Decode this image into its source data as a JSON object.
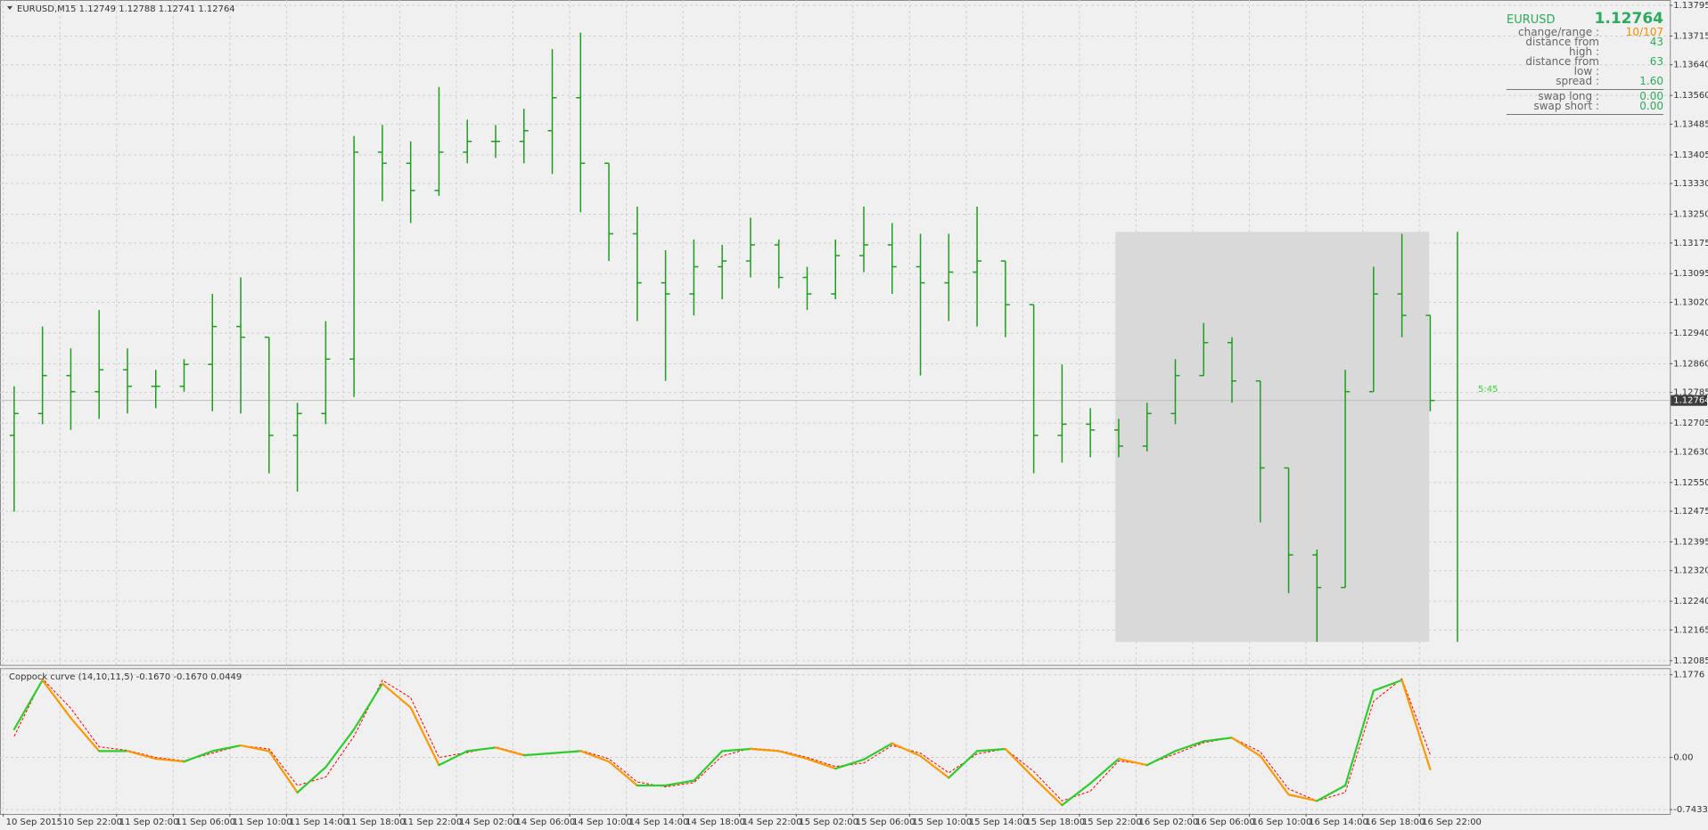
{
  "chart_data": [
    {
      "type": "ohlc",
      "title": "EURUSD,M15",
      "header_prices": [
        1.12749,
        1.12788,
        1.12741,
        1.12764
      ],
      "categories": [
        "10 Sep 2015",
        null,
        "10 Sep 22:00",
        null,
        "11 Sep 02:00",
        null,
        "11 Sep 06:00",
        null,
        "11 Sep 10:00",
        null,
        "11 Sep 14:00",
        null,
        "11 Sep 18:00",
        null,
        "11 Sep 22:00",
        null,
        "14 Sep 02:00",
        null,
        "14 Sep 06:00",
        null,
        "14 Sep 10:00",
        null,
        "14 Sep 14:00",
        null,
        "14 Sep 18:00",
        null,
        "14 Sep 22:00",
        null,
        "15 Sep 02:00",
        null,
        "15 Sep 06:00",
        null,
        "15 Sep 10:00",
        null,
        "15 Sep 14:00",
        null,
        "15 Sep 18:00",
        null,
        "15 Sep 22:00",
        null,
        "16 Sep 02:00",
        null,
        "16 Sep 06:00",
        null,
        "16 Sep 10:00",
        null,
        "16 Sep 14:00",
        null,
        "16 Sep 18:00",
        null,
        "16 Sep 22:00"
      ],
      "open": [
        1.12673,
        1.1273,
        1.12829,
        1.12787,
        1.12844,
        1.12801,
        1.12801,
        1.12858,
        1.12957,
        1.12929,
        1.12673,
        1.1273,
        1.12872,
        1.13412,
        1.13383,
        1.13312,
        1.13412,
        1.1344,
        1.1344,
        1.13468,
        1.13554,
        1.13383,
        1.13199,
        1.13071,
        1.13042,
        1.13113,
        1.13128,
        1.1317,
        1.13085,
        1.13042,
        1.13142,
        1.1317,
        1.13113,
        1.13071,
        1.13099,
        1.13128,
        1.13014,
        1.12673,
        1.12702,
        1.12687,
        1.12645,
        1.1273,
        1.12829,
        1.12915,
        1.12815,
        1.12588,
        1.12361,
        1.12276,
        1.12787,
        1.13042,
        1.12986
      ],
      "high": [
        1.12801,
        1.12957,
        1.129,
        1.13,
        1.129,
        1.12844,
        1.12872,
        1.13042,
        1.13085,
        1.12929,
        1.12758,
        1.12971,
        1.13454,
        1.13483,
        1.1344,
        1.13582,
        1.13497,
        1.13483,
        1.13525,
        1.13681,
        1.13724,
        1.13383,
        1.1327,
        1.13156,
        1.13184,
        1.1317,
        1.13241,
        1.13184,
        1.13113,
        1.13184,
        1.1327,
        1.13227,
        1.13199,
        1.13199,
        1.1327,
        1.13128,
        1.13014,
        1.12858,
        1.12744,
        1.12716,
        1.12758,
        1.12872,
        1.12966,
        1.12929,
        1.12815,
        1.12588,
        1.12375,
        1.12844,
        1.13113,
        1.13199,
        1.12986
      ],
      "low": [
        1.12474,
        1.12702,
        1.12687,
        1.12716,
        1.1273,
        1.12744,
        1.12787,
        1.12736,
        1.1273,
        1.12574,
        1.12526,
        1.12702,
        1.12773,
        1.13284,
        1.13227,
        1.13298,
        1.13383,
        1.13397,
        1.13383,
        1.13355,
        1.13255,
        1.13128,
        1.12971,
        1.12815,
        1.12986,
        1.13028,
        1.13085,
        1.13057,
        1.13,
        1.13028,
        1.13099,
        1.13042,
        1.12829,
        1.12971,
        1.12957,
        1.12929,
        1.12574,
        1.12602,
        1.12616,
        1.12616,
        1.12631,
        1.12702,
        1.12829,
        1.12758,
        1.12446,
        1.12261,
        1.12134,
        1.12276,
        1.12787,
        1.12929,
        1.12736
      ],
      "close": [
        1.1273,
        1.12829,
        1.12787,
        1.12844,
        1.12801,
        1.12801,
        1.12858,
        1.12957,
        1.12929,
        1.12673,
        1.1273,
        1.12872,
        1.13412,
        1.13383,
        1.13312,
        1.13412,
        1.1344,
        1.1344,
        1.13468,
        1.13554,
        1.13383,
        1.13199,
        1.13071,
        1.13042,
        1.13113,
        1.13128,
        1.1317,
        1.13085,
        1.13042,
        1.13142,
        1.1317,
        1.13113,
        1.13071,
        1.13099,
        1.13128,
        1.13014,
        1.12673,
        1.12702,
        1.12687,
        1.12645,
        1.1273,
        1.12829,
        1.12915,
        1.12815,
        1.12588,
        1.12361,
        1.12276,
        1.12787,
        1.13042,
        1.12986,
        1.12764
      ],
      "color": "#1e9e1e",
      "ylim": [
        1.12074,
        1.13809
      ],
      "yticks": [
        1.13795,
        1.13715,
        {
          "value": 1.1364,
          "label": "1.13640"
        },
        {
          "value": 1.1356,
          "label": "1.13560"
        },
        1.13485,
        1.13405,
        {
          "value": 1.1333,
          "label": "1.13330"
        },
        {
          "value": 1.1325,
          "label": "1.13250"
        },
        1.13175,
        1.13095,
        {
          "value": 1.1302,
          "label": "1.13020"
        },
        {
          "value": 1.1294,
          "label": "1.12940"
        },
        {
          "value": 1.1286,
          "label": "1.12860"
        },
        1.12785,
        1.12705,
        {
          "value": 1.1263,
          "label": "1.12630"
        },
        {
          "value": 1.1255,
          "label": "1.12550"
        },
        1.12475,
        1.12395,
        {
          "value": 1.1232,
          "label": "1.12320"
        },
        {
          "value": 1.1224,
          "label": "1.12240"
        },
        1.12165,
        1.12085
      ],
      "grid": true,
      "current_price": 1.12764,
      "timer": "5:45",
      "range_high": 1.13204,
      "range_low": 1.12134,
      "range_color": "#d9d9d9"
    },
    {
      "type": "line",
      "title": "Coppock curve",
      "params": "(14,10,11,5)",
      "readout": [
        "-0.1670",
        "-0.1670",
        "0.0449"
      ],
      "values": [
        0.4,
        1.1,
        0.56,
        0.09,
        0.09,
        -0.02,
        -0.06,
        0.09,
        0.17,
        0.09,
        -0.5,
        -0.14,
        0.4,
        1.05,
        0.71,
        -0.11,
        0.09,
        0.14,
        0.03,
        0.06,
        0.09,
        -0.06,
        -0.4,
        -0.4,
        -0.33,
        0.09,
        0.12,
        0.09,
        -0.02,
        -0.16,
        -0.03,
        0.2,
        0.02,
        -0.29,
        0.09,
        0.12,
        -0.29,
        -0.68,
        -0.37,
        -0.02,
        -0.11,
        0.09,
        0.23,
        0.28,
        0.02,
        -0.53,
        -0.62,
        -0.4,
        0.95,
        1.1,
        -0.17
      ],
      "rising_color": "#2ecc2e",
      "falling_color": "#ff9900",
      "signal": {
        "values": [
          0.3,
          1.12,
          0.7,
          0.15,
          0.1,
          0.0,
          -0.05,
          0.06,
          0.17,
          0.12,
          -0.4,
          -0.28,
          0.3,
          1.1,
          0.85,
          0.0,
          0.07,
          0.15,
          0.04,
          0.05,
          0.1,
          -0.02,
          -0.35,
          -0.42,
          -0.36,
          0.02,
          0.13,
          0.1,
          0.0,
          -0.13,
          -0.08,
          0.17,
          0.06,
          -0.22,
          0.05,
          0.12,
          -0.2,
          -0.62,
          -0.48,
          -0.05,
          -0.1,
          0.05,
          0.21,
          0.28,
          0.08,
          -0.45,
          -0.62,
          -0.5,
          0.8,
          1.12,
          0.04
        ],
        "color": "#ff0000",
        "dashed": true
      },
      "ylim": [
        -0.806,
        1.271
      ],
      "yticks": [
        1.1776,
        {
          "value": 0,
          "label": "0.00"
        },
        -0.7433
      ],
      "grid": true
    }
  ],
  "info": {
    "symbol": "EURUSD",
    "price": "1.12764",
    "rows": [
      [
        "change/range :",
        "10/107"
      ],
      [
        "distance from high :",
        "43"
      ],
      [
        "distance from low :",
        "63"
      ],
      [
        "spread :",
        "1.60"
      ]
    ],
    "swaps": [
      [
        "swap long :",
        "0.00"
      ],
      [
        "swap short :",
        "0.00"
      ]
    ]
  }
}
